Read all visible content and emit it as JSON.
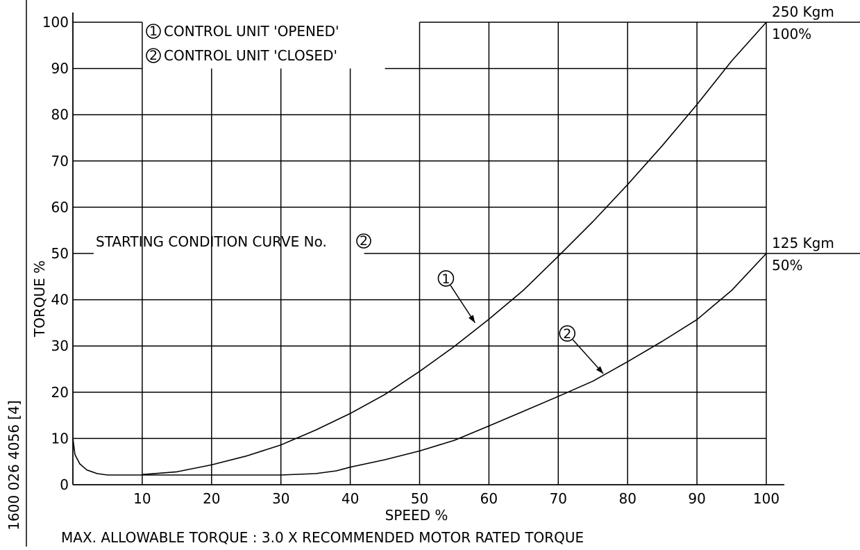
{
  "chart_data": {
    "type": "line",
    "xlabel": "SPEED %",
    "ylabel": "TORQUE %",
    "xlim": [
      0,
      100
    ],
    "ylim": [
      0,
      100
    ],
    "grid": true,
    "xticks": [
      "10",
      "20",
      "30",
      "40",
      "50",
      "60",
      "70",
      "80",
      "90",
      "100"
    ],
    "yticks": [
      "0",
      "10",
      "20",
      "30",
      "40",
      "50",
      "60",
      "70",
      "80",
      "90",
      "100"
    ],
    "legend": [
      {
        "marker": "1",
        "text": "CONTROL UNIT 'OPENED'"
      },
      {
        "marker": "2",
        "text": "CONTROL UNIT 'CLOSED'"
      }
    ],
    "series": [
      {
        "marker": "1",
        "x": [
          10,
          15,
          20,
          25,
          30,
          35,
          40,
          45,
          50,
          55,
          60,
          65,
          70,
          75,
          80,
          85,
          90,
          95,
          100
        ],
        "y": [
          2.2,
          2.8,
          4.3,
          6.2,
          8.6,
          11.8,
          15.4,
          19.5,
          24.5,
          29.9,
          35.8,
          42.1,
          49.4,
          56.9,
          64.9,
          73.3,
          82.2,
          91.6,
          100
        ]
      },
      {
        "marker": "2",
        "x": [
          0,
          0.3,
          1,
          2,
          3.5,
          5,
          10,
          20,
          30,
          35,
          38,
          40,
          45,
          50,
          55,
          60,
          65,
          70,
          75,
          80,
          85,
          90,
          95,
          100
        ],
        "y": [
          10,
          6.5,
          4.5,
          3.2,
          2.4,
          2.1,
          2.1,
          2.1,
          2.1,
          2.4,
          3.0,
          3.8,
          5.4,
          7.3,
          9.6,
          12.7,
          15.9,
          19.1,
          22.4,
          26.6,
          31.0,
          35.7,
          42.0,
          50
        ]
      }
    ],
    "callouts": [
      {
        "marker": "1",
        "x": 58,
        "y": 35
      },
      {
        "marker": "2",
        "x": 76.5,
        "y": 24
      }
    ],
    "reference_lines": [
      {
        "y": 100,
        "top_label": "250  Kgm",
        "bottom_label": "100%"
      },
      {
        "y": 50,
        "top_label": "125  Kgm",
        "bottom_label": "50%"
      }
    ],
    "annotations": {
      "starting_condition": "STARTING  CONDITION  CURVE  No.",
      "starting_condition_marker": "2"
    },
    "footer_note": "MAX.  ALLOWABLE  TORQUE  :  3.0  X  RECOMMENDED  MOTOR    RATED  TORQUE",
    "side_reference": "1600  026  4056  [4]"
  }
}
